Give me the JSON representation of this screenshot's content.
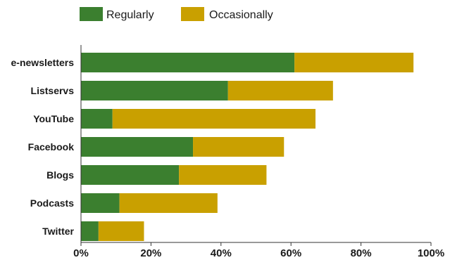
{
  "chart_data": {
    "type": "bar",
    "orientation": "horizontal",
    "stacked": true,
    "title": "",
    "xlabel": "",
    "ylabel": "",
    "categories": [
      "e-newsletters",
      "Listservs",
      "YouTube",
      "Facebook",
      "Blogs",
      "Podcasts",
      "Twitter"
    ],
    "series": [
      {
        "name": "Regularly",
        "color": "#3b7f2f",
        "values": [
          61,
          42,
          9,
          32,
          28,
          11,
          5
        ]
      },
      {
        "name": "Occasionally",
        "color": "#c9a000",
        "values": [
          34,
          30,
          58,
          26,
          25,
          28,
          13
        ]
      }
    ],
    "xlim": [
      0,
      100
    ],
    "xticks": [
      0,
      20,
      40,
      60,
      80,
      100
    ],
    "xtick_labels": [
      "0%",
      "20%",
      "40%",
      "60%",
      "80%",
      "100%"
    ],
    "grid": false,
    "legend_position": "top"
  }
}
